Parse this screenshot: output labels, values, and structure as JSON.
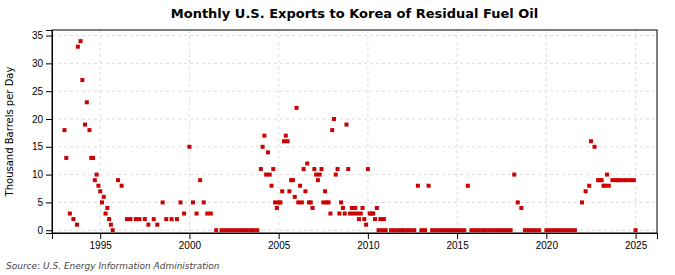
{
  "chart_data": {
    "type": "scatter",
    "title": "Monthly U.S. Exports to Korea of Residual Fuel Oil",
    "ylabel": "Thousand Barrels per Day",
    "annotations": [
      "Source: U.S. Energy Information Administration"
    ],
    "color": "#cc0000",
    "marker": "square",
    "grid": true,
    "xlim": [
      1992.3,
      2026.2
    ],
    "ylim": [
      -0.5,
      36
    ],
    "xticks": [
      1995,
      2000,
      2005,
      2010,
      2015,
      2020,
      2025
    ],
    "yticks": [
      0,
      5,
      10,
      15,
      20,
      25,
      30,
      35
    ],
    "x": [
      1993.0,
      1993.1,
      1993.3,
      1993.5,
      1993.7,
      1993.75,
      1993.9,
      1994.0,
      1994.15,
      1994.25,
      1994.4,
      1994.5,
      1994.6,
      1994.7,
      1994.8,
      1994.9,
      1995.0,
      1995.1,
      1995.2,
      1995.3,
      1995.4,
      1995.5,
      1995.6,
      1995.7,
      1996.0,
      1996.2,
      1996.5,
      1996.7,
      1997.0,
      1997.2,
      1997.5,
      1997.7,
      1998.0,
      1998.2,
      1998.5,
      1998.7,
      1999.0,
      1999.3,
      1999.5,
      1999.7,
      2000.0,
      2000.2,
      2000.4,
      2000.6,
      2000.8,
      2001.0,
      2001.2,
      2001.5,
      2001.8,
      2002.0,
      2002.2,
      2002.4,
      2002.6,
      2002.8,
      2003.0,
      2003.2,
      2003.4,
      2003.6,
      2003.8,
      2004.0,
      2004.1,
      2004.2,
      2004.3,
      2004.4,
      2004.5,
      2004.6,
      2004.7,
      2004.8,
      2004.9,
      2005.0,
      2005.1,
      2005.2,
      2005.3,
      2005.4,
      2005.5,
      2005.6,
      2005.7,
      2005.8,
      2005.9,
      2006.0,
      2006.1,
      2006.2,
      2006.3,
      2006.4,
      2006.5,
      2006.6,
      2006.7,
      2006.8,
      2006.9,
      2007.0,
      2007.1,
      2007.2,
      2007.3,
      2007.4,
      2007.5,
      2007.6,
      2007.7,
      2007.8,
      2007.9,
      2008.0,
      2008.1,
      2008.2,
      2008.3,
      2008.4,
      2008.5,
      2008.6,
      2008.7,
      2008.8,
      2008.9,
      2009.0,
      2009.1,
      2009.2,
      2009.3,
      2009.4,
      2009.5,
      2009.6,
      2009.7,
      2009.8,
      2009.9,
      2010.0,
      2010.1,
      2010.2,
      2010.3,
      2010.4,
      2010.5,
      2010.6,
      2010.7,
      2010.8,
      2010.9,
      2011.0,
      2011.3,
      2011.5,
      2011.7,
      2011.9,
      2012.0,
      2012.2,
      2012.4,
      2012.6,
      2012.8,
      2013.0,
      2013.2,
      2013.4,
      2013.6,
      2013.8,
      2014.0,
      2014.2,
      2014.4,
      2014.6,
      2014.8,
      2015.0,
      2015.2,
      2015.4,
      2015.6,
      2015.8,
      2016.0,
      2016.2,
      2016.4,
      2016.6,
      2016.8,
      2017.0,
      2017.2,
      2017.4,
      2017.6,
      2017.8,
      2018.0,
      2018.2,
      2018.4,
      2018.6,
      2018.8,
      2019.0,
      2019.2,
      2019.4,
      2019.6,
      2020.0,
      2020.2,
      2020.4,
      2020.6,
      2020.8,
      2021.0,
      2021.2,
      2021.4,
      2021.6,
      2022.0,
      2022.2,
      2022.4,
      2022.5,
      2022.7,
      2022.9,
      2023.0,
      2023.1,
      2023.2,
      2023.3,
      2023.4,
      2023.5,
      2023.7,
      2023.9,
      2024.0,
      2024.1,
      2024.3,
      2024.5,
      2024.7,
      2024.9,
      2025.0
    ],
    "values": [
      18,
      13,
      3,
      2,
      1,
      33,
      34,
      27,
      19,
      23,
      18,
      13,
      13,
      9,
      10,
      8,
      7,
      5,
      6,
      3,
      4,
      2,
      1,
      0,
      9,
      8,
      2,
      2,
      2,
      2,
      2,
      1,
      2,
      1,
      5,
      2,
      2,
      2,
      5,
      3,
      15,
      5,
      3,
      9,
      5,
      3,
      3,
      0,
      0,
      0,
      0,
      0,
      0,
      0,
      0,
      0,
      0,
      0,
      0,
      11,
      15,
      17,
      10,
      14,
      10,
      8,
      11,
      5,
      4,
      5,
      5,
      7,
      16,
      17,
      16,
      7,
      9,
      9,
      6,
      22,
      5,
      8,
      5,
      11,
      7,
      12,
      5,
      5,
      4,
      11,
      10,
      9,
      10,
      11,
      5,
      7,
      5,
      5,
      3,
      18,
      20,
      10,
      11,
      3,
      5,
      4,
      3,
      19,
      11,
      3,
      4,
      3,
      4,
      3,
      2,
      3,
      4,
      2,
      1,
      11,
      3,
      3,
      3,
      2,
      4,
      0,
      2,
      0,
      2,
      0,
      0,
      0,
      0,
      0,
      0,
      0,
      0,
      0,
      8,
      0,
      0,
      8,
      0,
      0,
      0,
      0,
      0,
      0,
      0,
      0,
      0,
      0,
      8,
      0,
      0,
      0,
      0,
      0,
      0,
      0,
      0,
      0,
      0,
      0,
      0,
      10,
      5,
      4,
      0,
      0,
      0,
      0,
      0,
      0,
      0,
      0,
      0,
      0,
      0,
      0,
      0,
      0,
      5,
      7,
      8,
      16,
      15,
      9,
      9,
      9,
      8,
      8,
      10,
      8,
      9,
      9,
      9,
      9,
      9,
      9,
      9,
      9,
      0
    ]
  }
}
